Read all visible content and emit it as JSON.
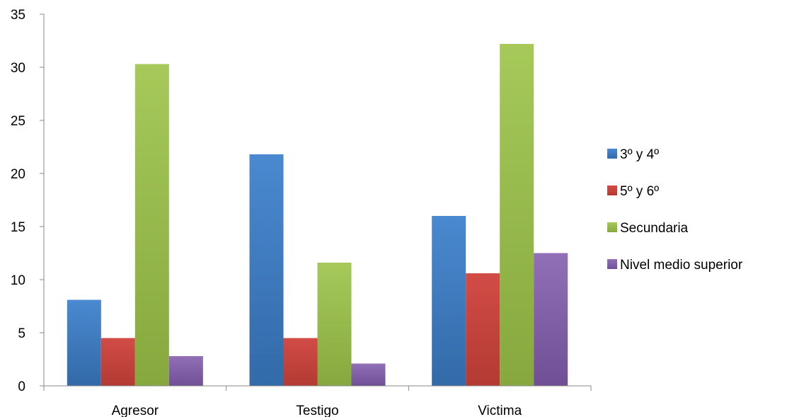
{
  "chart_data": {
    "type": "bar",
    "categories": [
      "Agresor",
      "Testigo",
      "Victima"
    ],
    "series": [
      {
        "name": "3º y 4º",
        "values": [
          8.1,
          21.8,
          16.0
        ],
        "color": "#4a89d0",
        "color_dark": "#336aa8"
      },
      {
        "name": "5º y 6º",
        "values": [
          4.5,
          4.5,
          10.6
        ],
        "color": "#d24c46",
        "color_dark": "#b33a33"
      },
      {
        "name": "Secundaria",
        "values": [
          30.3,
          11.6,
          32.2
        ],
        "color": "#a6c95a",
        "color_dark": "#86a83e"
      },
      {
        "name": "Nivel medio superior",
        "values": [
          2.8,
          2.1,
          12.5
        ],
        "color": "#9270b8",
        "color_dark": "#704f96"
      }
    ],
    "ylim": [
      0,
      35
    ],
    "yticks": [
      0,
      5,
      10,
      15,
      20,
      25,
      30,
      35
    ],
    "grid": false,
    "legend_position": "right",
    "title": "",
    "xlabel": "",
    "ylabel": ""
  }
}
